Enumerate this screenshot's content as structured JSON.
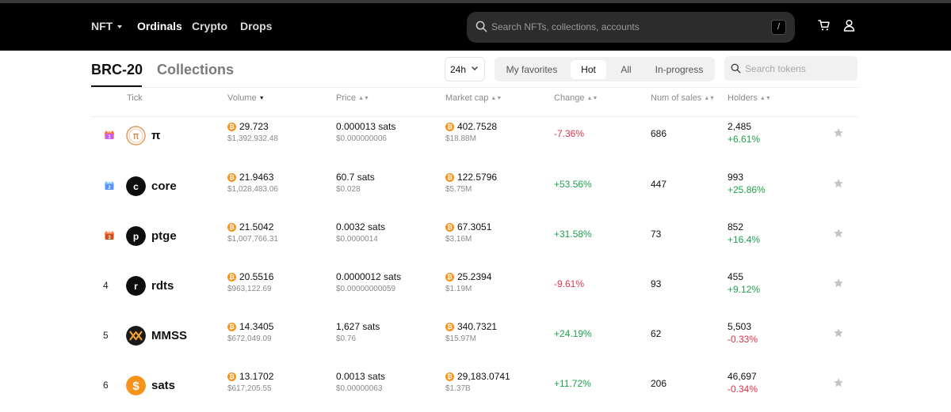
{
  "nav": {
    "items": [
      {
        "label": "NFT",
        "has_caret": true
      },
      {
        "label": "Ordinals",
        "active": true
      },
      {
        "label": "Crypto"
      },
      {
        "label": "Drops"
      }
    ],
    "search_placeholder": "Search NFTs, collections, accounts",
    "search_shortcut": "/"
  },
  "tabs": {
    "brc20": "BRC-20",
    "collections": "Collections"
  },
  "filters": {
    "period": "24h",
    "segments": [
      "My favorites",
      "Hot",
      "All",
      "In-progress"
    ],
    "active_segment": "Hot",
    "search_placeholder": "Search tokens"
  },
  "columns": {
    "tick": "Tick",
    "volume": "Volume",
    "price": "Price",
    "market_cap": "Market cap",
    "change": "Change",
    "num_sales": "Num of sales",
    "holders": "Holders",
    "sorted_column": "volume",
    "sort_direction": "descending"
  },
  "colors": {
    "up": "#1fa14d",
    "down": "#e0344a",
    "btc": "#f7931a"
  },
  "btc_symbol": "₿",
  "rows": [
    {
      "rank": "1",
      "rank_badge": "gold",
      "tick": "π",
      "logo_letter": "π",
      "logo_style": "outlined-orange",
      "volume": "29.723",
      "volume_usd": "$1,392,932.48",
      "price": "0.000013 sats",
      "price_usd": "$0.000000006",
      "market_cap": "402.7528",
      "market_cap_usd": "$18.88M",
      "change": "-7.36%",
      "change_dir": "down",
      "sales": "686",
      "holders": "2,485",
      "holders_change": "+6.61%",
      "holders_dir": "up"
    },
    {
      "rank": "2",
      "rank_badge": "silver",
      "tick": "core",
      "logo_letter": "c",
      "logo_style": "black",
      "volume": "21.9463",
      "volume_usd": "$1,028,483.06",
      "price": "60.7 sats",
      "price_usd": "$0.028",
      "market_cap": "122.5796",
      "market_cap_usd": "$5.75M",
      "change": "+53.56%",
      "change_dir": "up",
      "sales": "447",
      "holders": "993",
      "holders_change": "+25.86%",
      "holders_dir": "up"
    },
    {
      "rank": "3",
      "rank_badge": "bronze",
      "tick": "ptge",
      "logo_letter": "p",
      "logo_style": "black",
      "volume": "21.5042",
      "volume_usd": "$1,007,766.31",
      "price": "0.0032 sats",
      "price_usd": "$0.0000014",
      "market_cap": "67.3051",
      "market_cap_usd": "$3.16M",
      "change": "+31.58%",
      "change_dir": "up",
      "sales": "73",
      "holders": "852",
      "holders_change": "+16.4%",
      "holders_dir": "up"
    },
    {
      "rank": "4",
      "tick": "rdts",
      "logo_letter": "r",
      "logo_style": "black",
      "volume": "20.5516",
      "volume_usd": "$963,122.69",
      "price": "0.0000012 sats",
      "price_usd": "$0.00000000059",
      "market_cap": "25.2394",
      "market_cap_usd": "$1.19M",
      "change": "-9.61%",
      "change_dir": "down",
      "sales": "93",
      "holders": "455",
      "holders_change": "+9.12%",
      "holders_dir": "up"
    },
    {
      "rank": "5",
      "tick": "MMSS",
      "logo_letter": "M",
      "logo_style": "mmss",
      "volume": "14.3405",
      "volume_usd": "$672,049.09",
      "price": "1,627 sats",
      "price_usd": "$0.76",
      "market_cap": "340.7321",
      "market_cap_usd": "$15.97M",
      "change": "+24.19%",
      "change_dir": "up",
      "sales": "62",
      "holders": "5,503",
      "holders_change": "-0.33%",
      "holders_dir": "down"
    },
    {
      "rank": "6",
      "tick": "sats",
      "logo_letter": "$",
      "logo_style": "orange",
      "volume": "13.1702",
      "volume_usd": "$617,205.55",
      "price": "0.0013 sats",
      "price_usd": "$0.00000063",
      "market_cap": "29,183.0741",
      "market_cap_usd": "$1.37B",
      "change": "+11.72%",
      "change_dir": "up",
      "sales": "206",
      "holders": "46,697",
      "holders_change": "-0.34%",
      "holders_dir": "down"
    }
  ]
}
